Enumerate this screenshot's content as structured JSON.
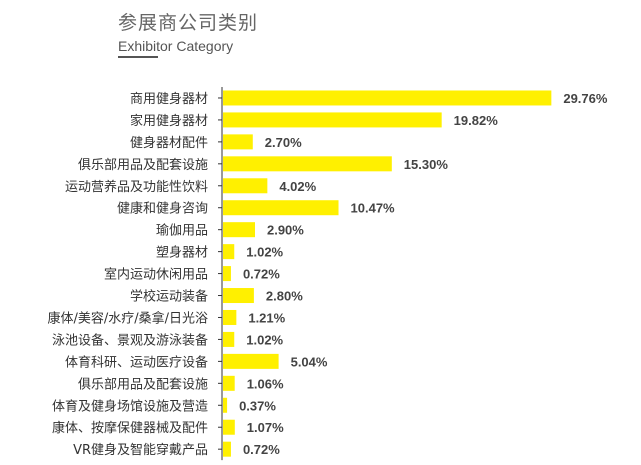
{
  "title": "参展商公司类别",
  "subtitle": "Exhibitor Category",
  "colors": {
    "bar": "#FFF000",
    "axis": "#333333",
    "label": "#333333",
    "value": "#444444"
  },
  "chart_data": {
    "type": "bar",
    "orientation": "horizontal",
    "title": "参展商公司类别",
    "subtitle": "Exhibitor Category",
    "categories": [
      "商用健身器材",
      "家用健身器材",
      "健身器材配件",
      "俱乐部用品及配套设施",
      "运动营养品及功能性饮料",
      "健康和健身咨询",
      "瑜伽用品",
      "塑身器材",
      "室内运动休闲用品",
      "学校运动装备",
      "康体/美容/水疗/桑拿/日光浴",
      "泳池设备、景观及游泳装备",
      "体育科研、运动医疗设备",
      "俱乐部用品及配套设施",
      "体育及健身场馆设施及营造",
      "康体、按摩保健器械及配件",
      "VR健身及智能穿戴产品"
    ],
    "values": [
      29.76,
      19.82,
      2.7,
      15.3,
      4.02,
      10.47,
      2.9,
      1.02,
      0.72,
      2.8,
      1.21,
      1.02,
      5.04,
      1.06,
      0.37,
      1.07,
      0.72
    ],
    "value_labels": [
      "29.76%",
      "19.82%",
      "2.70%",
      "15.30%",
      "4.02%",
      "10.47%",
      "2.90%",
      "1.02%",
      "0.72%",
      "2.80%",
      "1.21%",
      "1.02%",
      "5.04%",
      "1.06%",
      "0.37%",
      "1.07%",
      "0.72%"
    ],
    "xlim": [
      0,
      30
    ],
    "grid": false,
    "legend": "none"
  }
}
